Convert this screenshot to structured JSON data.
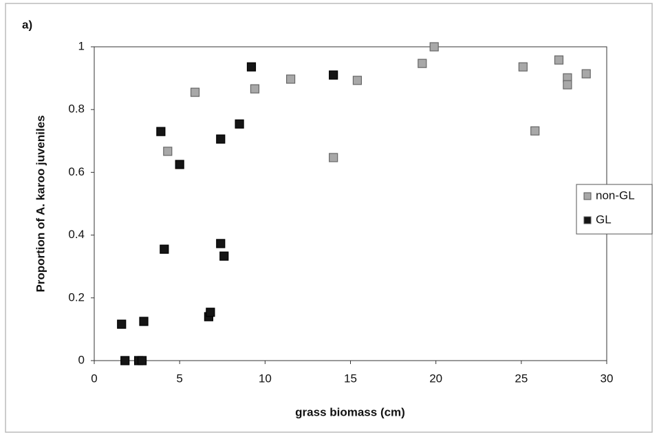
{
  "chart_data": {
    "type": "scatter",
    "annotation": "a)",
    "xlabel": "grass biomass (cm)",
    "ylabel": "Proportion of A. karoo juveniles",
    "xlim": [
      0,
      30
    ],
    "xticks": [
      0,
      5,
      10,
      15,
      20,
      25,
      30
    ],
    "ylim": [
      0,
      1
    ],
    "yticks": [
      0,
      0.2,
      0.4,
      0.6,
      0.8,
      1
    ],
    "grid": false,
    "legend": "right",
    "series": [
      {
        "name": "non-GL",
        "color": "#a8a8a8",
        "x": [
          4.3,
          5.9,
          9.4,
          11.5,
          14.0,
          15.4,
          19.2,
          19.9,
          25.1,
          25.8,
          27.2,
          27.7,
          27.7,
          28.8
        ],
        "values": [
          0.667,
          0.855,
          0.866,
          0.897,
          0.647,
          0.893,
          0.947,
          1.0,
          0.936,
          0.732,
          0.958,
          0.901,
          0.879,
          0.914
        ]
      },
      {
        "name": "GL",
        "color": "#151515",
        "x": [
          1.6,
          1.8,
          2.6,
          2.8,
          2.9,
          3.9,
          4.1,
          5.0,
          6.7,
          6.8,
          7.4,
          7.4,
          7.6,
          8.5,
          9.2,
          14.0
        ],
        "values": [
          0.116,
          0,
          0,
          0,
          0.125,
          0.73,
          0.355,
          0.625,
          0.14,
          0.154,
          0.373,
          0.706,
          0.333,
          0.754,
          0.936,
          0.91
        ]
      }
    ]
  }
}
